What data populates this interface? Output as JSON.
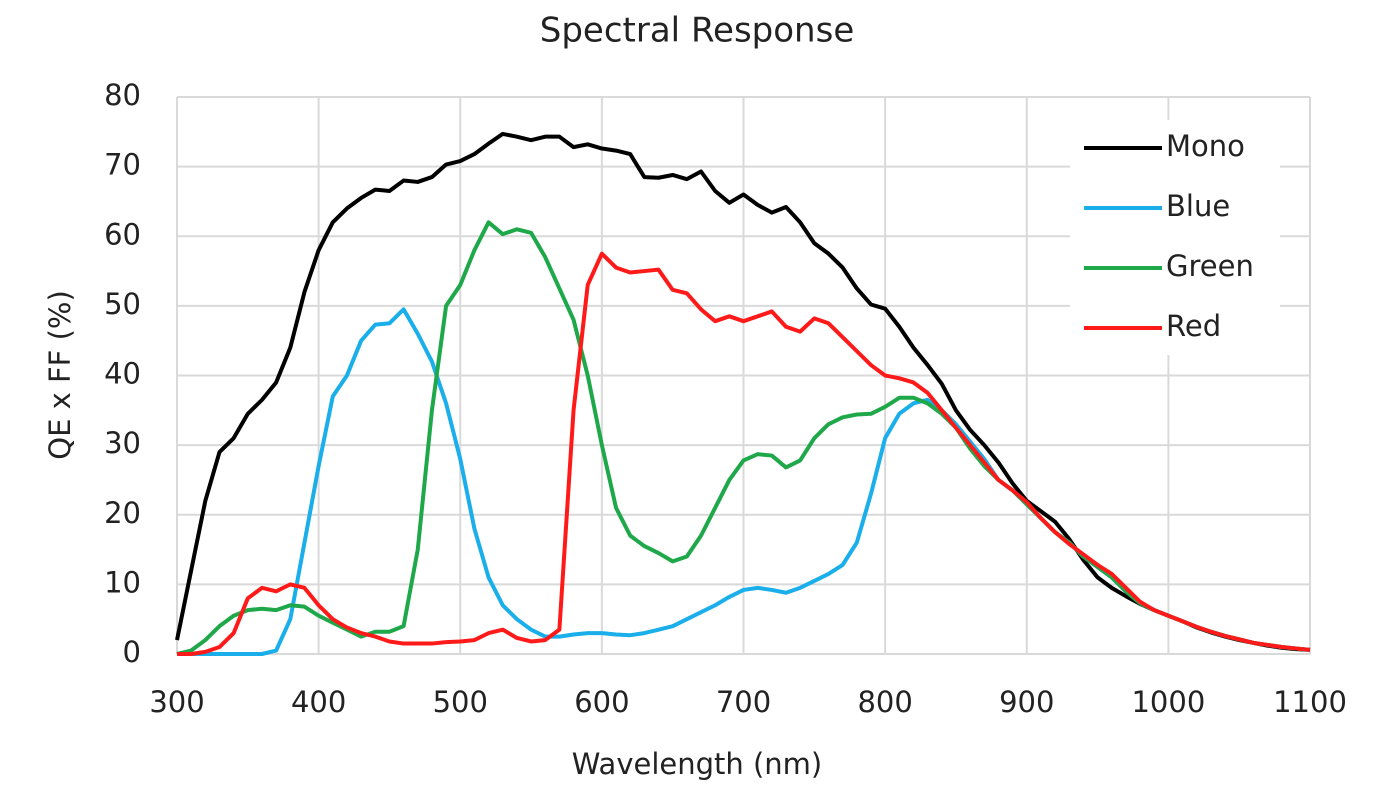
{
  "chart_data": {
    "type": "line",
    "title": "Spectral Response",
    "x_label": "Wavelength (nm)",
    "y_label": "QE x FF (%)",
    "x": [
      300,
      310,
      320,
      330,
      340,
      350,
      360,
      370,
      380,
      390,
      400,
      410,
      420,
      430,
      440,
      450,
      460,
      470,
      480,
      490,
      500,
      510,
      520,
      530,
      540,
      550,
      560,
      570,
      580,
      590,
      600,
      610,
      620,
      630,
      640,
      650,
      660,
      670,
      680,
      690,
      700,
      710,
      720,
      730,
      740,
      750,
      760,
      770,
      780,
      790,
      800,
      810,
      820,
      830,
      840,
      850,
      860,
      870,
      880,
      890,
      900,
      910,
      920,
      930,
      940,
      950,
      960,
      970,
      980,
      990,
      1000,
      1010,
      1020,
      1030,
      1040,
      1050,
      1060,
      1070,
      1080,
      1090,
      1100
    ],
    "series": [
      {
        "name": "Mono",
        "color": "#000000",
        "values": [
          2,
          12,
          22,
          29,
          31,
          34.5,
          36.5,
          39,
          44,
          52,
          58,
          62,
          64,
          65.5,
          66.7,
          66.5,
          68,
          67.8,
          68.5,
          70.3,
          70.8,
          71.8,
          73.3,
          74.7,
          74.3,
          73.8,
          74.3,
          74.3,
          72.8,
          73.2,
          72.6,
          72.3,
          71.8,
          68.5,
          68.4,
          68.8,
          68.2,
          69.3,
          66.5,
          64.8,
          66,
          64.5,
          63.4,
          64.2,
          62,
          59,
          57.5,
          55.5,
          52.5,
          50.2,
          49.6,
          47,
          44,
          41.5,
          38.8,
          35,
          32.2,
          30,
          27.5,
          24.5,
          22,
          20.5,
          19,
          16.5,
          13.5,
          11,
          9.5,
          8.3,
          7.2,
          6.3,
          5.5,
          4.7,
          3.8,
          3.1,
          2.5,
          2,
          1.6,
          1.2,
          0.9,
          0.7,
          0.6
        ]
      },
      {
        "name": "Blue",
        "color": "#1aaeea",
        "values": [
          0,
          0,
          0,
          0,
          0,
          0,
          0,
          0.5,
          5,
          16,
          27,
          37,
          40,
          45,
          47.3,
          47.5,
          49.5,
          46,
          42,
          36,
          28,
          18,
          11,
          7,
          5,
          3.5,
          2.5,
          2.5,
          2.8,
          3,
          3,
          2.8,
          2.7,
          3,
          3.5,
          4,
          5,
          6,
          7,
          8.2,
          9.2,
          9.5,
          9.2,
          8.8,
          9.5,
          10.5,
          11.5,
          12.8,
          16,
          23,
          31,
          34.5,
          36,
          36.5,
          35,
          33,
          30.5,
          28,
          25,
          23.5,
          21.5,
          19.5,
          17.5,
          16,
          14,
          12.5,
          11,
          9,
          7.3,
          6.3,
          5.5,
          4.7,
          3.9,
          3.2,
          2.6,
          2.1,
          1.6,
          1.3,
          1,
          0.8,
          0.6
        ]
      },
      {
        "name": "Green",
        "color": "#1fa84a",
        "values": [
          0,
          0.5,
          2,
          4,
          5.5,
          6.3,
          6.5,
          6.3,
          7,
          6.8,
          5.5,
          4.5,
          3.5,
          2.5,
          3.2,
          3.2,
          4,
          15,
          35,
          50,
          53,
          58,
          62,
          60.3,
          61,
          60.5,
          57,
          52.5,
          48,
          40,
          30,
          21,
          17,
          15.5,
          14.5,
          13.3,
          14,
          17,
          21,
          25,
          27.8,
          28.7,
          28.5,
          26.8,
          27.8,
          31,
          33,
          34,
          34.4,
          34.5,
          35.5,
          36.8,
          36.8,
          36,
          34.5,
          32.5,
          29.5,
          27,
          25,
          23.5,
          21.5,
          19.5,
          17.5,
          16,
          14,
          12.5,
          11,
          9,
          7.3,
          6.3,
          5.5,
          4.7,
          3.9,
          3.2,
          2.6,
          2.1,
          1.6,
          1.3,
          1,
          0.8,
          0.6
        ]
      },
      {
        "name": "Red",
        "color": "#ff1a1a",
        "values": [
          0,
          0,
          0.3,
          1,
          3,
          8,
          9.5,
          9,
          10,
          9.5,
          7,
          5,
          3.8,
          3,
          2.5,
          1.8,
          1.5,
          1.5,
          1.5,
          1.7,
          1.8,
          2,
          3,
          3.5,
          2.3,
          1.8,
          2,
          3.5,
          35,
          53,
          57.5,
          55.5,
          54.8,
          55,
          55.2,
          52.3,
          51.8,
          49.5,
          47.8,
          48.5,
          47.8,
          48.5,
          49.2,
          47,
          46.3,
          48.2,
          47.5,
          45.5,
          43.5,
          41.5,
          40,
          39.6,
          39,
          37.5,
          35,
          32.5,
          30,
          27.5,
          25,
          23.5,
          21.8,
          19.5,
          17.5,
          15.8,
          14.3,
          12.8,
          11.5,
          9.5,
          7.5,
          6.3,
          5.5,
          4.7,
          3.9,
          3.2,
          2.6,
          2.1,
          1.6,
          1.3,
          1,
          0.8,
          0.6
        ]
      }
    ],
    "xlim": [
      300,
      1100
    ],
    "xticks": [
      300,
      400,
      500,
      600,
      700,
      800,
      900,
      1000,
      1100
    ],
    "ylim": [
      0,
      80
    ],
    "yticks": [
      0,
      10,
      20,
      30,
      40,
      50,
      60,
      70,
      80
    ],
    "grid": true,
    "legend": "upper right"
  }
}
